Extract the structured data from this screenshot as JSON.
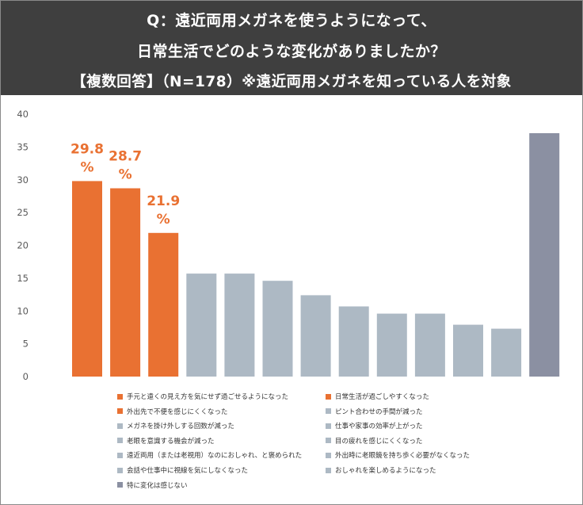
{
  "header": {
    "line1": "Q：遠近両用メガネを使うようになって、",
    "line2": "日常生活でどのような変化がありましたか？",
    "line3": "【複数回答】（N=178）※遠近両用メガネを知っている人を対象"
  },
  "colors": {
    "highlight": "#E97132",
    "gray": "#ADB9C4",
    "dark": "#8B90A2",
    "axis_text": "#595959"
  },
  "chart_data": {
    "type": "bar",
    "title": "Q：遠近両用メガネを使うようになって、日常生活でどのような変化がありましたか？【複数回答】（N=178）※遠近両用メガネを知っている人を対象",
    "ylim": [
      0,
      40
    ],
    "yticks": [
      "0",
      "5",
      "10",
      "15",
      "20",
      "25",
      "30",
      "35",
      "40"
    ],
    "grid": false,
    "legend_position": "bottom",
    "categories": [
      "手元と遠くの見え方を気にせず過ごせるようになった",
      "日常生活が過ごしやすくなった",
      "外出先で不便を感じにくくなった",
      "ピント合わせの手間が減った",
      "メガネを掛け外しする回数が減った",
      "仕事や家事の効率が上がった",
      "老眼を意識する機会が減った",
      "目の疲れを感じにくくなった",
      "遠近両用（または老視用）なのにおしゃれ、と褒められた",
      "外出時に老眼鏡を持ち歩く必要がなくなった",
      "会話や仕事中に視線を気にしなくなった",
      "おしゃれを楽しめるようになった",
      "特に変化は感じない"
    ],
    "values": [
      29.8,
      28.7,
      21.9,
      15.7,
      15.7,
      14.6,
      12.4,
      10.7,
      9.6,
      9.6,
      7.9,
      7.3,
      37.1
    ],
    "bar_colors": [
      "#E97132",
      "#E97132",
      "#E97132",
      "#ADB9C4",
      "#ADB9C4",
      "#ADB9C4",
      "#ADB9C4",
      "#ADB9C4",
      "#ADB9C4",
      "#ADB9C4",
      "#ADB9C4",
      "#ADB9C4",
      "#8B90A2"
    ],
    "data_labels": [
      {
        "index": 0,
        "value": "29.8",
        "unit": "%"
      },
      {
        "index": 1,
        "value": "28.7",
        "unit": "%"
      },
      {
        "index": 2,
        "value": "21.9",
        "unit": "%"
      }
    ]
  }
}
